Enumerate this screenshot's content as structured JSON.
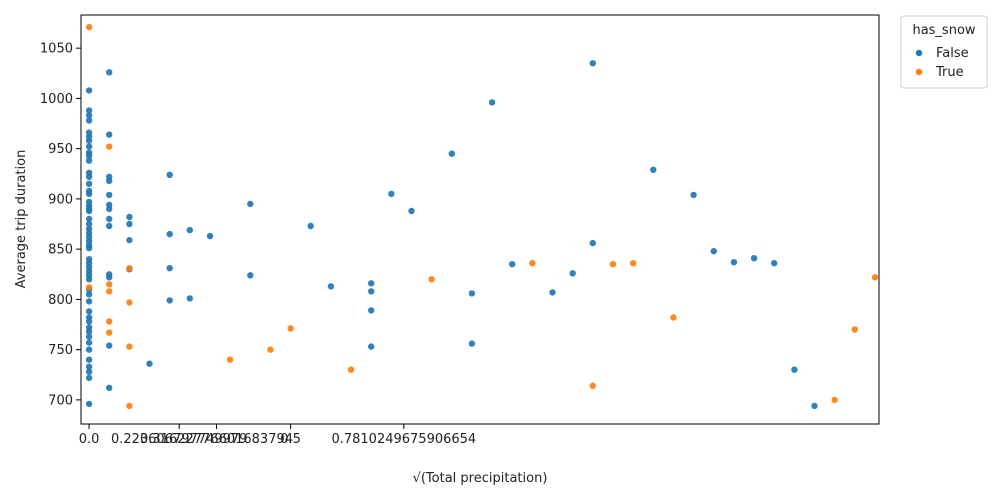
{
  "chart_data": {
    "type": "scatter",
    "xlabel": "√(Total precipitation)",
    "ylabel": "Average trip duration",
    "xlim": [
      -0.02,
      1.96
    ],
    "ylim": [
      676,
      1083
    ],
    "x_ticks": [
      {
        "value": 0.0,
        "label": "0.0"
      },
      {
        "value": 0.2236067977,
        "label": "0.223606797749979"
      },
      {
        "value": 0.316227766,
        "label": "0.31622776601683794"
      },
      {
        "value": 0.5,
        "label": "0.5"
      },
      {
        "value": 0.7810249676,
        "label": "0.7810249675906654"
      }
    ],
    "y_ticks": [
      700,
      750,
      800,
      850,
      900,
      950,
      1000,
      1050
    ],
    "legend": {
      "title": "has_snow",
      "placement": "upper-right-outside",
      "entries": [
        {
          "label": "False",
          "color": "#1f77b4"
        },
        {
          "label": "True",
          "color": "#ff7f0e"
        }
      ]
    },
    "series": [
      {
        "name": "False",
        "color": "#1f77b4",
        "points": [
          [
            0,
            1008
          ],
          [
            0,
            988
          ],
          [
            0,
            983
          ],
          [
            0,
            978
          ],
          [
            0,
            966
          ],
          [
            0,
            962
          ],
          [
            0,
            958
          ],
          [
            0,
            952
          ],
          [
            0,
            946
          ],
          [
            0,
            943
          ],
          [
            0,
            938
          ],
          [
            0,
            926
          ],
          [
            0,
            922
          ],
          [
            0,
            915
          ],
          [
            0,
            908
          ],
          [
            0,
            905
          ],
          [
            0,
            897
          ],
          [
            0,
            893
          ],
          [
            0,
            890
          ],
          [
            0,
            888
          ],
          [
            0,
            880
          ],
          [
            0,
            875
          ],
          [
            0,
            870
          ],
          [
            0,
            866
          ],
          [
            0,
            862
          ],
          [
            0,
            858
          ],
          [
            0,
            854
          ],
          [
            0,
            851
          ],
          [
            0,
            840
          ],
          [
            0,
            836
          ],
          [
            0,
            832
          ],
          [
            0,
            828
          ],
          [
            0,
            824
          ],
          [
            0,
            820
          ],
          [
            0,
            810
          ],
          [
            0,
            805
          ],
          [
            0,
            798
          ],
          [
            0,
            788
          ],
          [
            0,
            782
          ],
          [
            0,
            778
          ],
          [
            0,
            772
          ],
          [
            0,
            768
          ],
          [
            0,
            763
          ],
          [
            0,
            757
          ],
          [
            0,
            750
          ],
          [
            0,
            740
          ],
          [
            0,
            733
          ],
          [
            0,
            728
          ],
          [
            0,
            722
          ],
          [
            0,
            696
          ],
          [
            0.05,
            1026
          ],
          [
            0.05,
            964
          ],
          [
            0.05,
            922
          ],
          [
            0.05,
            918
          ],
          [
            0.05,
            904
          ],
          [
            0.05,
            894
          ],
          [
            0.05,
            890
          ],
          [
            0.05,
            880
          ],
          [
            0.05,
            873
          ],
          [
            0.05,
            825
          ],
          [
            0.05,
            822
          ],
          [
            0.05,
            754
          ],
          [
            0.05,
            712
          ],
          [
            0.1,
            882
          ],
          [
            0.1,
            875
          ],
          [
            0.1,
            859
          ],
          [
            0.1,
            830
          ],
          [
            0.15,
            736
          ],
          [
            0.2,
            924
          ],
          [
            0.2,
            865
          ],
          [
            0.2,
            831
          ],
          [
            0.2,
            799
          ],
          [
            0.25,
            869
          ],
          [
            0.25,
            801
          ],
          [
            0.3,
            863
          ],
          [
            0.4,
            895
          ],
          [
            0.4,
            824
          ],
          [
            0.55,
            873
          ],
          [
            0.6,
            813
          ],
          [
            0.7,
            816
          ],
          [
            0.7,
            808
          ],
          [
            0.7,
            789
          ],
          [
            0.7,
            753
          ],
          [
            0.75,
            905
          ],
          [
            0.8,
            888
          ],
          [
            0.9,
            945
          ],
          [
            0.95,
            806
          ],
          [
            0.95,
            756
          ],
          [
            1.0,
            996
          ],
          [
            1.05,
            835
          ],
          [
            1.15,
            807
          ],
          [
            1.2,
            826
          ],
          [
            1.25,
            1035
          ],
          [
            1.25,
            856
          ],
          [
            1.4,
            929
          ],
          [
            1.5,
            904
          ],
          [
            1.55,
            848
          ],
          [
            1.6,
            837
          ],
          [
            1.65,
            841
          ],
          [
            1.7,
            836
          ],
          [
            1.75,
            730
          ],
          [
            1.8,
            694
          ]
        ]
      },
      {
        "name": "True",
        "color": "#ff7f0e",
        "points": [
          [
            0,
            1071
          ],
          [
            0,
            812
          ],
          [
            0.05,
            952
          ],
          [
            0.05,
            815
          ],
          [
            0.05,
            808
          ],
          [
            0.05,
            778
          ],
          [
            0.05,
            767
          ],
          [
            0.1,
            831
          ],
          [
            0.1,
            797
          ],
          [
            0.1,
            753
          ],
          [
            0.1,
            694
          ],
          [
            0.35,
            740
          ],
          [
            0.45,
            750
          ],
          [
            0.5,
            771
          ],
          [
            0.65,
            730
          ],
          [
            0.85,
            820
          ],
          [
            1.1,
            836
          ],
          [
            1.25,
            714
          ],
          [
            1.3,
            835
          ],
          [
            1.35,
            836
          ],
          [
            1.45,
            782
          ],
          [
            1.85,
            700
          ],
          [
            1.9,
            770
          ],
          [
            1.95,
            822
          ]
        ]
      }
    ]
  }
}
